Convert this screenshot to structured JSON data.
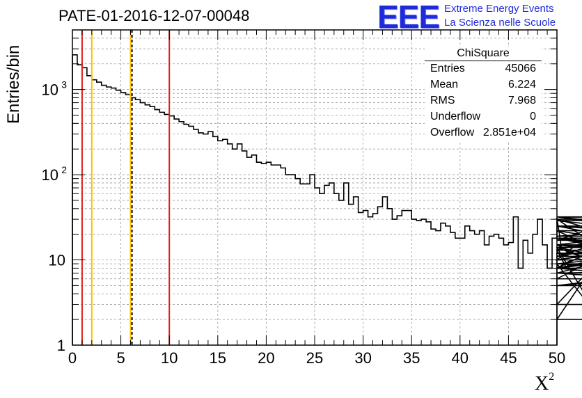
{
  "chart_data": {
    "type": "bar",
    "title": "PATE-01-2016-12-07-00048",
    "ylabel": "Entries/bin",
    "xlabel": "X",
    "xlabel_superscript": "2",
    "xlim": [
      0,
      50
    ],
    "ylim": [
      1,
      5000
    ],
    "yscale": "log",
    "grid": true,
    "bin_width": 0.5,
    "x_ticks": [
      0,
      5,
      10,
      15,
      20,
      25,
      30,
      35,
      40,
      45,
      50
    ],
    "y_ticks": [
      {
        "value": 1,
        "label": "1"
      },
      {
        "value": 10,
        "label": "10"
      },
      {
        "value": 100,
        "label": "10",
        "sup": "2"
      },
      {
        "value": 1000,
        "label": "10",
        "sup": "3"
      }
    ],
    "values": [
      2550,
      1950,
      1800,
      1450,
      1300,
      1220,
      1120,
      1070,
      1040,
      980,
      920,
      870,
      800,
      760,
      700,
      660,
      630,
      580,
      540,
      510,
      490,
      450,
      420,
      390,
      370,
      340,
      310,
      300,
      320,
      280,
      250,
      260,
      230,
      200,
      230,
      190,
      160,
      170,
      140,
      135,
      140,
      130,
      130,
      120,
      100,
      100,
      90,
      78,
      78,
      100,
      70,
      60,
      75,
      80,
      60,
      50,
      80,
      45,
      55,
      36,
      38,
      32,
      35,
      42,
      55,
      40,
      30,
      33,
      38,
      38,
      30,
      29,
      30,
      28,
      23,
      22,
      27,
      25,
      21,
      18,
      18,
      25,
      22,
      20,
      22,
      15,
      19,
      20,
      18,
      15,
      16,
      32,
      8,
      17,
      12,
      20,
      30,
      15,
      8,
      18,
      31,
      13,
      8,
      10,
      15,
      11,
      14,
      3,
      9,
      2,
      14,
      8,
      17,
      30,
      9,
      8,
      22,
      8,
      13,
      25,
      15,
      14,
      8,
      6,
      30,
      12,
      5,
      7,
      18,
      8,
      15,
      25,
      18,
      9,
      7,
      7,
      5,
      9,
      15,
      14,
      18,
      10,
      22,
      9,
      8,
      25,
      18,
      11,
      32,
      12,
      12,
      10,
      10,
      32,
      15,
      7,
      8,
      19,
      32,
      29,
      12,
      12
    ],
    "vertical_lines": [
      {
        "x": 1,
        "color": "#e02020",
        "style": "solid"
      },
      {
        "x": 2,
        "color": "#ffc000",
        "style": "solid"
      },
      {
        "x": 6,
        "color": "#ffc000",
        "style": "solid"
      },
      {
        "x": 6.15,
        "color": "#000000",
        "style": "dashed"
      },
      {
        "x": 10,
        "color": "#e02020",
        "style": "solid"
      }
    ],
    "stats_box": {
      "name": "ChiSquare",
      "rows": [
        {
          "key": "Entries",
          "value": "45066"
        },
        {
          "key": "Mean",
          "value": "6.224"
        },
        {
          "key": "RMS",
          "value": "7.968"
        },
        {
          "key": "Underflow",
          "value": "0"
        },
        {
          "key": "Overflow",
          "value": "2.851e+04"
        }
      ]
    }
  },
  "logo": {
    "mark": "EEE",
    "line1": "Extreme Energy Events",
    "line2": "La Scienza nelle Scuole",
    "color": "#1f2bd8"
  }
}
